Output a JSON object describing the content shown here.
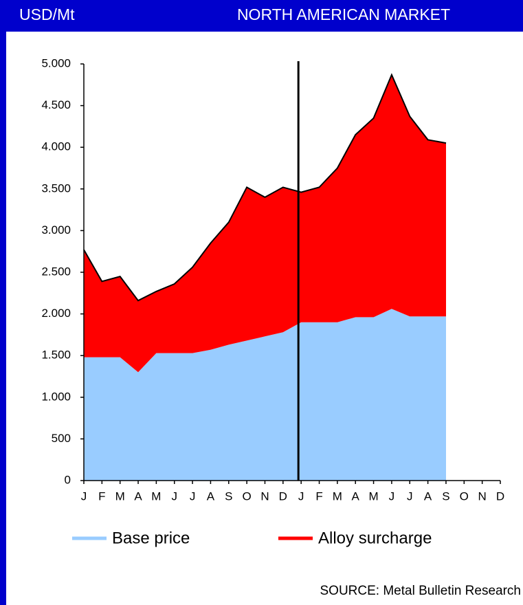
{
  "chart_data": {
    "type": "stacked-area",
    "title": "NORTH AMERICAN MARKET",
    "y_label": "USD/Mt",
    "source": "SOURCE: Metal Bulletin Research",
    "categories": [
      "J",
      "F",
      "M",
      "A",
      "M",
      "J",
      "J",
      "A",
      "S",
      "O",
      "N",
      "D",
      "J",
      "F",
      "M",
      "A",
      "M",
      "J",
      "J",
      "A",
      "S",
      "O",
      "N",
      "D"
    ],
    "series": [
      {
        "name": "Base price",
        "color": "#99ccff",
        "values": [
          1480,
          1480,
          1480,
          1300,
          1530,
          1530,
          1530,
          1570,
          1630,
          1680,
          1730,
          1780,
          1900,
          1900,
          1900,
          1960,
          1960,
          2060,
          1970,
          1970,
          1970,
          null,
          null,
          null
        ]
      },
      {
        "name": "Alloy surcharge",
        "color": "#ff0000",
        "values": [
          1290,
          910,
          970,
          860,
          740,
          830,
          1030,
          1280,
          1470,
          1840,
          1670,
          1740,
          1560,
          1620,
          1850,
          2190,
          2390,
          2810,
          2400,
          2120,
          2080,
          null,
          null,
          null
        ]
      }
    ],
    "ylim": [
      0,
      5000
    ],
    "yticks": [
      0,
      500,
      {
        "value": 1000,
        "label": "1.000"
      },
      {
        "value": 1500,
        "label": "1.500"
      },
      {
        "value": 2000,
        "label": "2.000"
      },
      {
        "value": 2500,
        "label": "2.500"
      },
      {
        "value": 3000,
        "label": "3.000"
      },
      {
        "value": 3500,
        "label": "3.500"
      },
      {
        "value": 4000,
        "label": "4.000"
      },
      {
        "value": 4500,
        "label": "4.500"
      },
      {
        "value": 5000,
        "label": "5.000"
      }
    ]
  }
}
